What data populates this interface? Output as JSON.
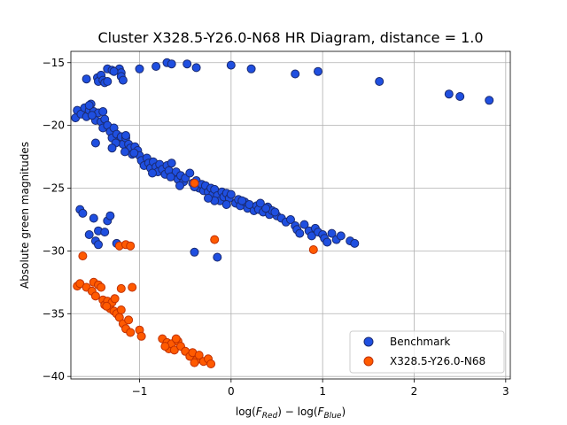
{
  "chart_data": {
    "type": "scatter",
    "title": "Cluster X328.5-Y26.0-N68 HR Diagram, distance = 1.0",
    "xlabel_main": "log(",
    "xlabel_parts": [
      "log(",
      "F",
      "Red",
      ") − log(",
      "F",
      "Blue",
      ")"
    ],
    "ylabel": "Absolute green magnitudes",
    "xlim": [
      -1.75,
      3.05
    ],
    "ylim": [
      -40.2,
      -14.1
    ],
    "y_inverted": true,
    "x_ticks": [
      -1,
      0,
      1,
      2,
      3
    ],
    "x_tick_labels": [
      "−1",
      "0",
      "1",
      "2",
      "3"
    ],
    "y_ticks": [
      -15,
      -20,
      -25,
      -30,
      -35,
      -40
    ],
    "y_tick_labels": [
      "−15",
      "−20",
      "−25",
      "−30",
      "−35",
      "−40"
    ],
    "grid": true,
    "legend_position": "lower-right",
    "series": [
      {
        "name": "Benchmark",
        "color": "#1f4fe0",
        "edge": "#1a2a70",
        "points": [
          [
            -1.35,
            -15.5
          ],
          [
            -1.3,
            -15.6
          ],
          [
            -1.22,
            -15.5
          ],
          [
            -1.2,
            -15.8
          ],
          [
            -1.0,
            -15.5
          ],
          [
            -0.82,
            -15.3
          ],
          [
            -0.7,
            -15.0
          ],
          [
            -0.65,
            -15.1
          ],
          [
            -0.48,
            -15.1
          ],
          [
            -0.38,
            -15.4
          ],
          [
            0.0,
            -15.2
          ],
          [
            0.22,
            -15.5
          ],
          [
            0.7,
            -15.9
          ],
          [
            0.95,
            -15.7
          ],
          [
            1.62,
            -16.5
          ],
          [
            2.38,
            -17.5
          ],
          [
            2.5,
            -17.7
          ],
          [
            2.82,
            -18.0
          ],
          [
            -1.58,
            -16.3
          ],
          [
            -1.46,
            -16.2
          ],
          [
            -1.45,
            -16.5
          ],
          [
            -1.42,
            -16.0
          ],
          [
            -1.4,
            -16.4
          ],
          [
            -1.38,
            -16.6
          ],
          [
            -1.35,
            -16.5
          ],
          [
            -1.2,
            -16.1
          ],
          [
            -1.18,
            -16.4
          ],
          [
            -1.28,
            -15.7
          ],
          [
            -1.7,
            -19.4
          ],
          [
            -1.68,
            -18.8
          ],
          [
            -1.64,
            -19.1
          ],
          [
            -1.6,
            -18.6
          ],
          [
            -1.58,
            -19.3
          ],
          [
            -1.55,
            -18.8
          ],
          [
            -1.53,
            -18.3
          ],
          [
            -1.5,
            -18.9
          ],
          [
            -1.48,
            -19.6
          ],
          [
            -1.45,
            -19.0
          ],
          [
            -1.42,
            -19.7
          ],
          [
            -1.4,
            -20.2
          ],
          [
            -1.38,
            -19.5
          ],
          [
            -1.35,
            -20.0
          ],
          [
            -1.32,
            -20.5
          ],
          [
            -1.3,
            -21.0
          ],
          [
            -1.28,
            -20.2
          ],
          [
            -1.25,
            -20.7
          ],
          [
            -1.22,
            -21.2
          ],
          [
            -1.2,
            -20.9
          ],
          [
            -1.18,
            -21.5
          ],
          [
            -1.15,
            -21.0
          ],
          [
            -1.12,
            -21.5
          ],
          [
            -1.1,
            -21.8
          ],
          [
            -1.08,
            -22.3
          ],
          [
            -1.05,
            -21.7
          ],
          [
            -1.02,
            -22.0
          ],
          [
            -1.0,
            -22.4
          ],
          [
            -0.98,
            -22.8
          ],
          [
            -0.95,
            -23.2
          ],
          [
            -0.92,
            -22.6
          ],
          [
            -0.9,
            -23.0
          ],
          [
            -0.88,
            -23.4
          ],
          [
            -0.85,
            -22.9
          ],
          [
            -0.82,
            -23.3
          ],
          [
            -0.8,
            -23.7
          ],
          [
            -0.78,
            -23.1
          ],
          [
            -0.75,
            -23.5
          ],
          [
            -0.72,
            -23.9
          ],
          [
            -0.7,
            -23.2
          ],
          [
            -0.68,
            -23.6
          ],
          [
            -0.65,
            -23.0
          ],
          [
            -0.62,
            -24.0
          ],
          [
            -0.6,
            -23.7
          ],
          [
            -0.58,
            -24.3
          ],
          [
            -0.55,
            -24.0
          ],
          [
            -0.52,
            -24.5
          ],
          [
            -0.5,
            -24.2
          ],
          [
            -0.45,
            -23.8
          ],
          [
            -0.42,
            -24.6
          ],
          [
            -0.38,
            -24.4
          ],
          [
            -0.35,
            -25.0
          ],
          [
            -0.32,
            -24.7
          ],
          [
            -0.3,
            -25.2
          ],
          [
            -0.28,
            -24.8
          ],
          [
            -0.25,
            -25.3
          ],
          [
            -0.22,
            -25.0
          ],
          [
            -0.2,
            -25.5
          ],
          [
            -0.18,
            -25.1
          ],
          [
            -0.15,
            -25.6
          ],
          [
            -0.12,
            -26.0
          ],
          [
            -0.1,
            -25.3
          ],
          [
            -0.08,
            -25.7
          ],
          [
            -0.05,
            -25.4
          ],
          [
            -0.02,
            -25.8
          ],
          [
            0.0,
            -25.5
          ],
          [
            0.05,
            -26.2
          ],
          [
            0.08,
            -25.9
          ],
          [
            0.1,
            -26.4
          ],
          [
            0.15,
            -26.1
          ],
          [
            0.18,
            -26.6
          ],
          [
            0.2,
            -26.3
          ],
          [
            0.25,
            -26.8
          ],
          [
            0.28,
            -26.4
          ],
          [
            0.3,
            -26.7
          ],
          [
            0.35,
            -26.9
          ],
          [
            0.4,
            -26.5
          ],
          [
            0.42,
            -27.1
          ],
          [
            0.45,
            -26.8
          ],
          [
            0.5,
            -27.2
          ],
          [
            0.55,
            -27.4
          ],
          [
            0.6,
            -27.7
          ],
          [
            0.65,
            -27.5
          ],
          [
            0.7,
            -28.0
          ],
          [
            0.72,
            -28.3
          ],
          [
            0.75,
            -28.6
          ],
          [
            0.8,
            -27.9
          ],
          [
            0.85,
            -28.4
          ],
          [
            0.88,
            -28.8
          ],
          [
            0.92,
            -28.2
          ],
          [
            0.95,
            -28.5
          ],
          [
            1.0,
            -28.7
          ],
          [
            1.02,
            -29.0
          ],
          [
            1.05,
            -29.3
          ],
          [
            1.1,
            -28.6
          ],
          [
            1.15,
            -29.1
          ],
          [
            1.2,
            -28.8
          ],
          [
            1.3,
            -29.2
          ],
          [
            1.35,
            -29.4
          ],
          [
            -0.18,
            -26.0
          ],
          [
            -0.05,
            -26.3
          ],
          [
            0.38,
            -26.6
          ],
          [
            -1.65,
            -26.7
          ],
          [
            -1.62,
            -27.0
          ],
          [
            -1.5,
            -27.4
          ],
          [
            -1.35,
            -27.6
          ],
          [
            -1.32,
            -27.2
          ],
          [
            -1.45,
            -28.4
          ],
          [
            -1.38,
            -28.5
          ],
          [
            -1.55,
            -28.7
          ],
          [
            -1.48,
            -29.2
          ],
          [
            -1.45,
            -29.5
          ],
          [
            -1.25,
            -29.4
          ],
          [
            -0.4,
            -30.1
          ],
          [
            -0.15,
            -30.5
          ],
          [
            -1.55,
            -18.4
          ],
          [
            -1.52,
            -19.2
          ],
          [
            -1.4,
            -18.9
          ],
          [
            -1.26,
            -21.4
          ],
          [
            -1.16,
            -22.1
          ],
          [
            -1.06,
            -22.2
          ],
          [
            -0.86,
            -23.8
          ],
          [
            -0.66,
            -24.1
          ],
          [
            -0.56,
            -24.8
          ],
          [
            -0.4,
            -24.9
          ],
          [
            -0.25,
            -25.8
          ],
          [
            0.12,
            -26.0
          ],
          [
            0.32,
            -26.2
          ],
          [
            0.48,
            -26.9
          ],
          [
            -1.15,
            -20.8
          ],
          [
            -1.48,
            -21.4
          ],
          [
            -1.3,
            -21.8
          ]
        ]
      },
      {
        "name": "X328.5-Y26.0-N68",
        "color": "#ff5a00",
        "edge": "#c03000",
        "points": [
          [
            -1.68,
            -32.8
          ],
          [
            -1.65,
            -32.6
          ],
          [
            -1.58,
            -32.9
          ],
          [
            -1.52,
            -33.2
          ],
          [
            -1.5,
            -32.5
          ],
          [
            -1.48,
            -33.6
          ],
          [
            -1.45,
            -32.7
          ],
          [
            -1.42,
            -32.9
          ],
          [
            -1.4,
            -33.9
          ],
          [
            -1.38,
            -34.3
          ],
          [
            -1.35,
            -34.0
          ],
          [
            -1.32,
            -34.6
          ],
          [
            -1.3,
            -34.1
          ],
          [
            -1.28,
            -34.8
          ],
          [
            -1.25,
            -35.0
          ],
          [
            -1.22,
            -35.3
          ],
          [
            -1.2,
            -34.7
          ],
          [
            -1.18,
            -35.8
          ],
          [
            -1.15,
            -36.2
          ],
          [
            -1.12,
            -35.5
          ],
          [
            -1.1,
            -36.5
          ],
          [
            -1.0,
            -36.3
          ],
          [
            -0.98,
            -36.8
          ],
          [
            -0.75,
            -37.0
          ],
          [
            -0.7,
            -37.3
          ],
          [
            -0.68,
            -37.8
          ],
          [
            -0.65,
            -37.4
          ],
          [
            -0.62,
            -37.9
          ],
          [
            -0.58,
            -37.2
          ],
          [
            -0.55,
            -37.6
          ],
          [
            -0.5,
            -38.0
          ],
          [
            -0.45,
            -38.4
          ],
          [
            -0.42,
            -38.1
          ],
          [
            -0.38,
            -38.7
          ],
          [
            -0.35,
            -38.3
          ],
          [
            -0.3,
            -38.8
          ],
          [
            -0.25,
            -38.6
          ],
          [
            -0.22,
            -39.0
          ],
          [
            -1.62,
            -30.4
          ],
          [
            -1.22,
            -29.6
          ],
          [
            -1.15,
            -29.5
          ],
          [
            -1.1,
            -29.6
          ],
          [
            -0.4,
            -24.6
          ],
          [
            -0.18,
            -29.1
          ],
          [
            0.9,
            -29.9
          ],
          [
            -1.36,
            -34.4
          ],
          [
            -1.27,
            -33.8
          ],
          [
            -1.2,
            -33.0
          ],
          [
            -1.08,
            -32.9
          ],
          [
            -0.72,
            -37.6
          ],
          [
            -0.6,
            -37.0
          ],
          [
            -0.4,
            -38.9
          ]
        ]
      }
    ]
  }
}
